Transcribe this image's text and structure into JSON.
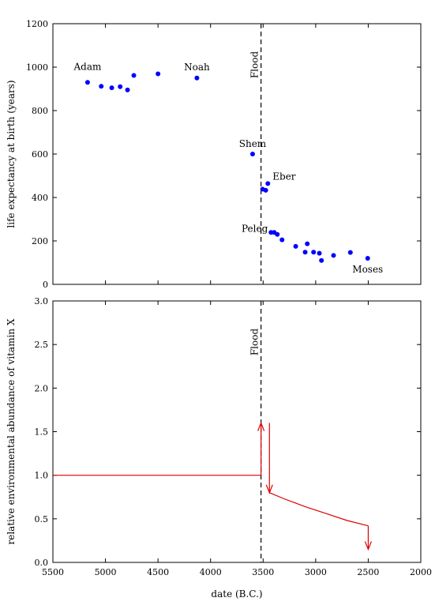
{
  "chart_data": [
    {
      "type": "scatter",
      "ylabel": "life expectancy at birth (years)",
      "xlim": [
        5500,
        2000
      ],
      "ylim": [
        0,
        1200
      ],
      "x_ticks": [
        5500,
        5000,
        4500,
        4000,
        3500,
        3000,
        2500,
        2000
      ],
      "y_ticks": [
        0,
        200,
        400,
        600,
        800,
        1000,
        1200
      ],
      "x_tick_labels_visible": false,
      "marker_color": "#0000ff",
      "points": [
        {
          "x": 5170,
          "y": 930
        },
        {
          "x": 5040,
          "y": 912
        },
        {
          "x": 4940,
          "y": 905
        },
        {
          "x": 4860,
          "y": 910
        },
        {
          "x": 4790,
          "y": 895
        },
        {
          "x": 4730,
          "y": 962
        },
        {
          "x": 4500,
          "y": 969
        },
        {
          "x": 4130,
          "y": 950
        },
        {
          "x": 3600,
          "y": 600
        },
        {
          "x": 3505,
          "y": 438
        },
        {
          "x": 3475,
          "y": 433
        },
        {
          "x": 3455,
          "y": 464
        },
        {
          "x": 3425,
          "y": 239
        },
        {
          "x": 3395,
          "y": 239
        },
        {
          "x": 3365,
          "y": 230
        },
        {
          "x": 3320,
          "y": 205
        },
        {
          "x": 3190,
          "y": 175
        },
        {
          "x": 3100,
          "y": 148
        },
        {
          "x": 3080,
          "y": 187
        },
        {
          "x": 3020,
          "y": 148
        },
        {
          "x": 2965,
          "y": 143
        },
        {
          "x": 2945,
          "y": 110
        },
        {
          "x": 2830,
          "y": 133
        },
        {
          "x": 2670,
          "y": 147
        },
        {
          "x": 2505,
          "y": 120
        }
      ],
      "annotations": [
        {
          "text": "Adam",
          "x": 5170,
          "y": 930
        },
        {
          "text": "Noah",
          "x": 4130,
          "y": 950
        },
        {
          "text": "Shem",
          "x": 3600,
          "y": 600
        },
        {
          "text": "Eber",
          "x": 3455,
          "y": 464
        },
        {
          "text": "Peleg",
          "x": 3425,
          "y": 239
        },
        {
          "text": "Moses",
          "x": 2505,
          "y": 120
        }
      ],
      "vline": {
        "x": 3520,
        "label": "Flood",
        "style": "dashed"
      }
    },
    {
      "type": "line",
      "xlabel": "date (B.C.)",
      "ylabel": "relative environmental abundance of vitamin X",
      "xlim": [
        5500,
        2000
      ],
      "ylim": [
        0,
        3
      ],
      "x_ticks": [
        5500,
        5000,
        4500,
        4000,
        3500,
        3000,
        2500,
        2000
      ],
      "y_ticks": [
        0.0,
        0.5,
        1.0,
        1.5,
        2.0,
        2.5,
        3.0
      ],
      "line_color": "#dd0000",
      "segments": [
        {
          "points": [
            [
              5500,
              1.0
            ],
            [
              3520,
              1.0
            ]
          ]
        },
        {
          "points": [
            [
              3440,
              0.8
            ],
            [
              3300,
              0.73
            ],
            [
              3100,
              0.64
            ],
            [
              2900,
              0.56
            ],
            [
              2700,
              0.48
            ],
            [
              2500,
              0.42
            ]
          ]
        }
      ],
      "arrows": [
        {
          "x": 3520,
          "from": 1.0,
          "to": 1.6,
          "direction": "up"
        },
        {
          "x": 3440,
          "from": 1.6,
          "to": 0.8,
          "direction": "down"
        },
        {
          "x": 2500,
          "from": 0.42,
          "to": 0.15,
          "direction": "down"
        }
      ],
      "vline": {
        "x": 3520,
        "label": "Flood",
        "style": "dashed"
      }
    }
  ]
}
